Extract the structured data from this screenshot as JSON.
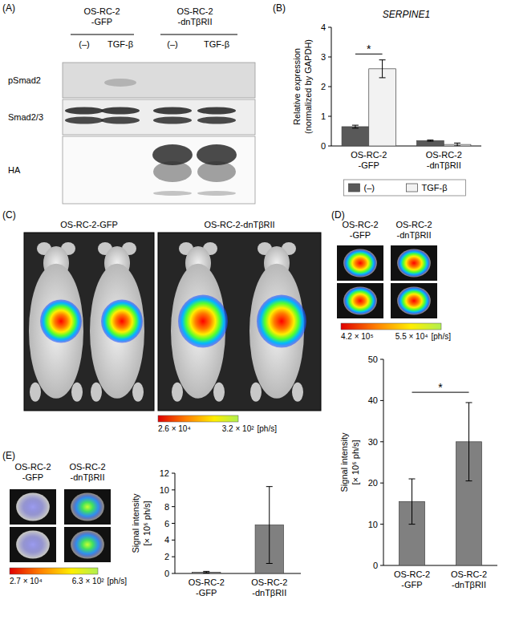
{
  "panels": {
    "A": {
      "label": "(A)",
      "groups": [
        "OS-RC-2\n-GFP",
        "OS-RC-2\n-dnTβRII"
      ],
      "lanes": [
        "(–)",
        "TGF-β",
        "(–)",
        "TGF-β"
      ],
      "rows": [
        "pSmad2",
        "Smad2/3",
        "HA"
      ]
    },
    "B": {
      "label": "(B)"
    },
    "C": {
      "label": "(C)",
      "groups": [
        "OS-RC-2-GFP",
        "OS-RC-2-dnTβRII"
      ],
      "colorbar": {
        "labels": [
          "2.6 × 10⁴",
          "3.2 × 10²"
        ],
        "unit": "[ph/s]"
      }
    },
    "D": {
      "label": "(D)",
      "groups": [
        "OS-RC-2\n-GFP",
        "OS-RC-2\n-dnTβRII"
      ],
      "colorbar": {
        "labels": [
          "4.2 × 10⁵",
          "5.5 × 10⁴"
        ],
        "unit": "[ph/s]"
      }
    },
    "E": {
      "label": "(E)",
      "groups": [
        "OS-RC-2\n-GFP",
        "OS-RC-2\n-dnTβRII"
      ],
      "colorbar": {
        "labels": [
          "2.7 × 10⁴",
          "6.3 × 10²"
        ],
        "unit": "[ph/s]"
      }
    }
  },
  "chart_data": [
    {
      "type": "bar",
      "title": "SERPINE1",
      "y_label": "Relative expression\n(normalized by GAPDH)",
      "categories": [
        "OS-RC-2\n-GFP",
        "OS-RC-2\n-dnTβRII"
      ],
      "series": [
        {
          "name": "(–)",
          "color": "#595959",
          "values": [
            0.65,
            0.18
          ],
          "errors": [
            0.05,
            0.02
          ]
        },
        {
          "name": "TGF-β",
          "color": "#f2f2f2",
          "values": [
            2.6,
            0.05
          ],
          "errors": [
            0.3,
            0.05
          ]
        }
      ],
      "ylim": [
        0,
        4
      ],
      "yticks": [
        0,
        1,
        2,
        3,
        4
      ],
      "legend": "bottom",
      "significance": [
        {
          "label": "*",
          "from": 0,
          "to": 1,
          "y": 3.1
        }
      ]
    },
    {
      "type": "bar",
      "y_label": "Signal intensity\n[× 10⁶ ph/s]",
      "categories": [
        "OS-RC-2\n-GFP",
        "OS-RC-2\n-dnTβRII"
      ],
      "values": [
        15.5,
        30
      ],
      "errors": [
        5.5,
        9.5
      ],
      "color": "#808080",
      "ylim": [
        0,
        50
      ],
      "yticks": [
        0,
        10,
        20,
        30,
        40,
        50
      ],
      "significance": [
        {
          "label": "*",
          "from": 0,
          "to": 1,
          "y": 42
        }
      ]
    },
    {
      "type": "bar",
      "y_label": "Signal intensity\n[× 10⁶ ph/s]",
      "categories": [
        "OS-RC-2\n-GFP",
        "OS-RC-2\n-dnTβRII"
      ],
      "values": [
        0.15,
        5.8
      ],
      "errors": [
        0.1,
        4.6
      ],
      "color": "#808080",
      "ylim": [
        0,
        12
      ],
      "yticks": [
        0,
        2,
        4,
        6,
        8,
        10,
        12
      ]
    }
  ]
}
